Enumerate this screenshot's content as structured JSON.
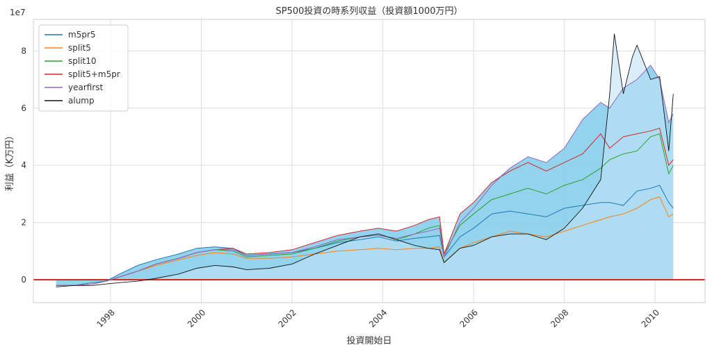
{
  "chart_data": {
    "type": "line",
    "title": "SP500投資の時系列収益（投資額1000万円）",
    "xlabel": "投資開始日",
    "ylabel": "利益（K万円）",
    "y_offset_label": "1e7",
    "xlim": [
      1996.3,
      2011.1
    ],
    "ylim": [
      -0.8,
      9.1
    ],
    "y_ticks": [
      0,
      2,
      4,
      6,
      8
    ],
    "y_tick_labels": [
      "0",
      "2",
      "4",
      "6",
      "8"
    ],
    "x_ticks": [
      1998,
      2000,
      2002,
      2004,
      2006,
      2008,
      2010
    ],
    "x_tick_labels": [
      "1998",
      "2000",
      "2002",
      "2004",
      "2006",
      "2008",
      "2010"
    ],
    "grid": true,
    "legend_position": "top-left",
    "zero_line_color": "#d62728",
    "fill_color": "#87ceeb",
    "series": [
      {
        "name": "m5pr5",
        "color": "#1f77b4",
        "x": [
          1996.8,
          1997.2,
          1997.6,
          1997.9,
          1998.2,
          1998.6,
          1999.0,
          1999.5,
          1999.9,
          2000.3,
          2000.7,
          2001.0,
          2001.5,
          2002.0,
          2002.5,
          2003.0,
          2003.5,
          2003.9,
          2004.3,
          2004.7,
          2005.0,
          2005.25,
          2005.35,
          2005.7,
          2006.0,
          2006.4,
          2006.8,
          2007.2,
          2007.6,
          2008.0,
          2008.4,
          2008.8,
          2009.0,
          2009.3,
          2009.6,
          2009.9,
          2010.1,
          2010.3,
          2010.4
        ],
        "y": [
          -0.2,
          -0.2,
          -0.1,
          -0.05,
          0.2,
          0.5,
          0.7,
          0.9,
          1.1,
          1.15,
          1.1,
          0.85,
          0.9,
          0.95,
          1.1,
          1.3,
          1.4,
          1.5,
          1.35,
          1.45,
          1.5,
          1.55,
          0.8,
          1.5,
          1.8,
          2.3,
          2.4,
          2.3,
          2.2,
          2.5,
          2.6,
          2.7,
          2.7,
          2.6,
          3.1,
          3.2,
          3.3,
          2.7,
          2.5
        ]
      },
      {
        "name": "split5",
        "color": "#ff7f0e",
        "x": [
          1996.8,
          1997.2,
          1997.6,
          1997.9,
          1998.2,
          1998.6,
          1999.0,
          1999.5,
          1999.9,
          2000.3,
          2000.7,
          2001.0,
          2001.5,
          2002.0,
          2002.5,
          2003.0,
          2003.5,
          2003.9,
          2004.3,
          2004.7,
          2005.0,
          2005.25,
          2005.35,
          2005.7,
          2006.0,
          2006.4,
          2006.8,
          2007.2,
          2007.6,
          2008.0,
          2008.4,
          2008.8,
          2009.0,
          2009.3,
          2009.6,
          2009.9,
          2010.1,
          2010.3,
          2010.4
        ],
        "y": [
          -0.2,
          -0.2,
          -0.15,
          -0.05,
          0.1,
          0.3,
          0.5,
          0.7,
          0.85,
          0.95,
          0.9,
          0.75,
          0.75,
          0.8,
          0.9,
          1.0,
          1.05,
          1.1,
          1.05,
          1.1,
          1.1,
          1.15,
          0.6,
          1.1,
          1.3,
          1.5,
          1.7,
          1.6,
          1.5,
          1.7,
          1.9,
          2.1,
          2.2,
          2.3,
          2.5,
          2.8,
          2.9,
          2.2,
          2.3
        ]
      },
      {
        "name": "split10",
        "color": "#2ca02c",
        "x": [
          1996.8,
          1997.2,
          1997.6,
          1997.9,
          1998.2,
          1998.6,
          1999.0,
          1999.5,
          1999.9,
          2000.3,
          2000.7,
          2001.0,
          2001.5,
          2002.0,
          2002.5,
          2003.0,
          2003.5,
          2003.9,
          2004.3,
          2004.7,
          2005.0,
          2005.25,
          2005.35,
          2005.7,
          2006.0,
          2006.4,
          2006.8,
          2007.2,
          2007.6,
          2008.0,
          2008.4,
          2008.8,
          2009.0,
          2009.3,
          2009.6,
          2009.9,
          2010.1,
          2010.3,
          2010.4
        ],
        "y": [
          -0.2,
          -0.2,
          -0.15,
          -0.05,
          0.1,
          0.3,
          0.55,
          0.75,
          0.95,
          1.05,
          1.0,
          0.8,
          0.85,
          0.9,
          1.1,
          1.35,
          1.5,
          1.6,
          1.4,
          1.6,
          1.8,
          1.9,
          0.9,
          1.9,
          2.3,
          2.8,
          3.0,
          3.2,
          3.0,
          3.3,
          3.5,
          3.9,
          4.2,
          4.4,
          4.5,
          5.0,
          5.1,
          3.7,
          4.0
        ]
      },
      {
        "name": "split5+m5pr",
        "color": "#d62728",
        "x": [
          1996.8,
          1997.2,
          1997.6,
          1997.9,
          1998.2,
          1998.6,
          1999.0,
          1999.5,
          1999.9,
          2000.3,
          2000.7,
          2001.0,
          2001.5,
          2002.0,
          2002.5,
          2003.0,
          2003.5,
          2003.9,
          2004.3,
          2004.7,
          2005.0,
          2005.25,
          2005.35,
          2005.7,
          2006.0,
          2006.4,
          2006.8,
          2007.2,
          2007.6,
          2008.0,
          2008.4,
          2008.8,
          2009.0,
          2009.3,
          2009.6,
          2009.9,
          2010.1,
          2010.3,
          2010.4
        ],
        "y": [
          -0.2,
          -0.2,
          -0.15,
          -0.05,
          0.1,
          0.3,
          0.55,
          0.75,
          0.95,
          1.05,
          1.1,
          0.9,
          0.95,
          1.05,
          1.3,
          1.55,
          1.7,
          1.8,
          1.7,
          1.9,
          2.1,
          2.2,
          0.9,
          2.3,
          2.7,
          3.4,
          3.8,
          4.1,
          3.8,
          4.1,
          4.4,
          5.1,
          4.6,
          5.0,
          5.1,
          5.2,
          5.3,
          4.0,
          4.2
        ]
      },
      {
        "name": "yearfirst",
        "color": "#9467bd",
        "x": [
          1996.8,
          1997.2,
          1997.6,
          1997.9,
          1998.2,
          1998.6,
          1999.0,
          1999.5,
          1999.9,
          2000.3,
          2000.7,
          2001.0,
          2001.5,
          2002.0,
          2002.5,
          2003.0,
          2003.5,
          2003.9,
          2004.3,
          2004.7,
          2005.0,
          2005.25,
          2005.35,
          2005.7,
          2006.0,
          2006.4,
          2006.8,
          2007.2,
          2007.6,
          2008.0,
          2008.4,
          2008.8,
          2009.0,
          2009.3,
          2009.6,
          2009.9,
          2010.1,
          2010.3,
          2010.4
        ],
        "y": [
          -0.2,
          -0.2,
          -0.15,
          -0.05,
          0.1,
          0.3,
          0.55,
          0.75,
          0.95,
          1.05,
          1.05,
          0.85,
          0.9,
          0.95,
          1.15,
          1.4,
          1.5,
          1.55,
          1.45,
          1.6,
          1.7,
          1.8,
          0.8,
          2.0,
          2.5,
          3.3,
          3.9,
          4.3,
          4.1,
          4.6,
          5.6,
          6.2,
          6.0,
          6.7,
          7.0,
          7.5,
          7.0,
          5.5,
          5.8
        ]
      },
      {
        "name": "alump",
        "color": "#111111",
        "x": [
          1996.8,
          1997.2,
          1997.6,
          1997.9,
          1998.2,
          1998.6,
          1999.0,
          1999.5,
          1999.9,
          2000.3,
          2000.7,
          2001.0,
          2001.5,
          2002.0,
          2002.5,
          2003.0,
          2003.5,
          2003.9,
          2004.3,
          2004.7,
          2005.0,
          2005.25,
          2005.35,
          2005.7,
          2006.0,
          2006.4,
          2006.8,
          2007.2,
          2007.6,
          2008.0,
          2008.4,
          2008.8,
          2009.0,
          2009.1,
          2009.3,
          2009.5,
          2009.6,
          2009.9,
          2010.1,
          2010.3,
          2010.4
        ],
        "y": [
          -0.25,
          -0.2,
          -0.2,
          -0.15,
          -0.1,
          -0.05,
          0.05,
          0.2,
          0.4,
          0.5,
          0.45,
          0.35,
          0.4,
          0.55,
          0.9,
          1.2,
          1.5,
          1.6,
          1.4,
          1.2,
          1.1,
          1.05,
          0.6,
          1.1,
          1.2,
          1.5,
          1.6,
          1.6,
          1.4,
          1.8,
          2.5,
          3.5,
          6.5,
          8.6,
          6.5,
          7.8,
          8.2,
          7.0,
          7.1,
          4.5,
          6.5
        ]
      }
    ]
  }
}
